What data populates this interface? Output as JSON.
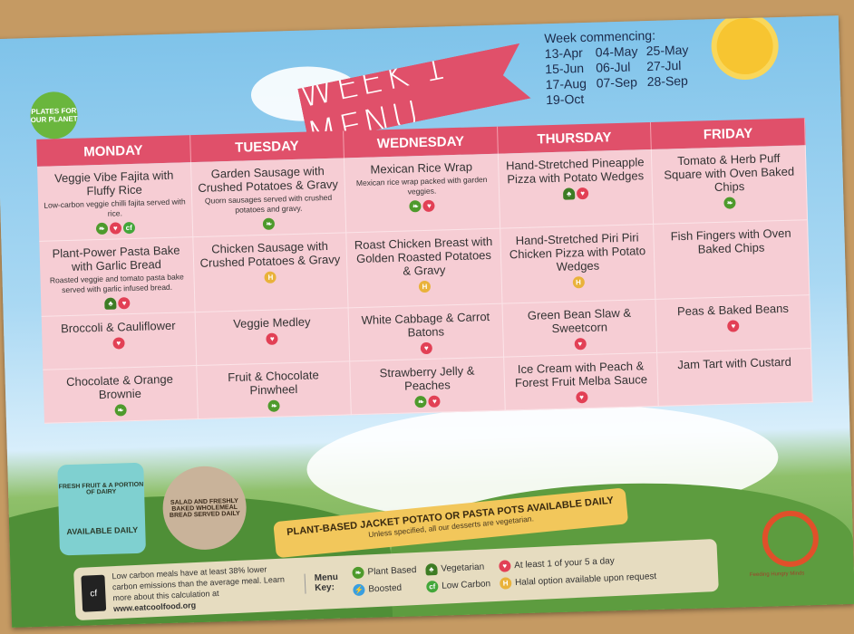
{
  "title": "WEEK 1 MENU",
  "logo": "PLATES FOR OUR PLANET",
  "weeks": {
    "label": "Week commencing:",
    "dates": [
      "13-Apr",
      "04-May",
      "25-May",
      "15-Jun",
      "06-Jul",
      "27-Jul",
      "17-Aug",
      "07-Sep",
      "28-Sep",
      "19-Oct"
    ]
  },
  "days": [
    {
      "name": "MONDAY",
      "items": [
        {
          "dish": "Veggie Vibe Fajita with Fluffy Rice",
          "desc": "Low-carbon veggie chilli fajita served with rice.",
          "icons": [
            "plant",
            "fiveaday",
            "lowcarbon"
          ]
        },
        {
          "dish": "Plant-Power Pasta Bake with Garlic Bread",
          "desc": "Roasted veggie and tomato pasta bake served with garlic infused bread.",
          "icons": [
            "vegetarian",
            "fiveaday"
          ]
        },
        {
          "dish": "Broccoli & Cauliflower",
          "desc": "",
          "icons": [
            "fiveaday"
          ]
        },
        {
          "dish": "Chocolate & Orange Brownie",
          "desc": "",
          "icons": [
            "plant"
          ]
        }
      ]
    },
    {
      "name": "TUESDAY",
      "items": [
        {
          "dish": "Garden Sausage with Crushed Potatoes & Gravy",
          "desc": "Quorn sausages served with crushed potatoes and gravy.",
          "icons": [
            "plant"
          ]
        },
        {
          "dish": "Chicken Sausage with Crushed Potatoes & Gravy",
          "desc": "",
          "icons": [
            "halal"
          ]
        },
        {
          "dish": "Veggie Medley",
          "desc": "",
          "icons": [
            "fiveaday"
          ]
        },
        {
          "dish": "Fruit & Chocolate Pinwheel",
          "desc": "",
          "icons": [
            "plant"
          ]
        }
      ]
    },
    {
      "name": "WEDNESDAY",
      "items": [
        {
          "dish": "Mexican Rice Wrap",
          "desc": "Mexican rice wrap packed with garden veggies.",
          "icons": [
            "plant",
            "fiveaday"
          ]
        },
        {
          "dish": "Roast Chicken Breast with Golden Roasted Potatoes & Gravy",
          "desc": "",
          "icons": [
            "halal"
          ]
        },
        {
          "dish": "White Cabbage & Carrot Batons",
          "desc": "",
          "icons": [
            "fiveaday"
          ]
        },
        {
          "dish": "Strawberry Jelly & Peaches",
          "desc": "",
          "icons": [
            "plant",
            "fiveaday"
          ]
        }
      ]
    },
    {
      "name": "THURSDAY",
      "items": [
        {
          "dish": "Hand-Stretched Pineapple Pizza with Potato Wedges",
          "desc": "",
          "icons": [
            "vegetarian",
            "fiveaday"
          ]
        },
        {
          "dish": "Hand-Stretched Piri Piri Chicken Pizza with Potato Wedges",
          "desc": "",
          "icons": [
            "halal"
          ]
        },
        {
          "dish": "Green Bean Slaw & Sweetcorn",
          "desc": "",
          "icons": [
            "fiveaday"
          ]
        },
        {
          "dish": "Ice Cream with Peach & Forest Fruit Melba Sauce",
          "desc": "",
          "icons": [
            "fiveaday"
          ]
        }
      ]
    },
    {
      "name": "FRIDAY",
      "items": [
        {
          "dish": "Tomato & Herb Puff Square with Oven Baked Chips",
          "desc": "",
          "icons": [
            "plant"
          ]
        },
        {
          "dish": "Fish Fingers with Oven Baked Chips",
          "desc": "",
          "icons": []
        },
        {
          "dish": "Peas & Baked Beans",
          "desc": "",
          "icons": [
            "fiveaday"
          ]
        },
        {
          "dish": "Jam Tart with Custard",
          "desc": "",
          "icons": []
        }
      ]
    }
  ],
  "badges": {
    "dairy_top": "FRESH FRUIT & A PORTION OF DAIRY",
    "dairy_bottom": "AVAILABLE DAILY",
    "salad": "SALAD AND FRESHLY BAKED WHOLEMEAL BREAD SERVED DAILY"
  },
  "pasta": {
    "title": "PLANT-BASED JACKET POTATO OR PASTA POTS AVAILABLE DAILY",
    "sub": "Unless specified, all our desserts are vegetarian."
  },
  "key": {
    "carbon_note_pre": "Low carbon meals have at least 38% lower carbon emissions than the average meal. Learn more about this calculation at ",
    "carbon_url": "www.eatcoolfood.org",
    "label": "Menu Key:",
    "items": [
      {
        "icon": "plant",
        "label": "Plant Based"
      },
      {
        "icon": "boosted",
        "label": "Boosted"
      },
      {
        "icon": "vegetarian",
        "label": "Vegetarian"
      },
      {
        "icon": "lowcarbon",
        "label": "Low Carbon"
      },
      {
        "icon": "fiveaday",
        "label": "At least 1 of your 5 a day"
      },
      {
        "icon": "halal",
        "label": "Halal option available upon request"
      }
    ]
  },
  "footer_logo": "Feeding Hungry Minds",
  "colors": {
    "header": "#e0506a",
    "cell": "#f6cdd4",
    "plant": "#4e9a2c",
    "fiveaday": "#e24055",
    "halal": "#e9b23a",
    "boosted": "#3a9fe0"
  }
}
